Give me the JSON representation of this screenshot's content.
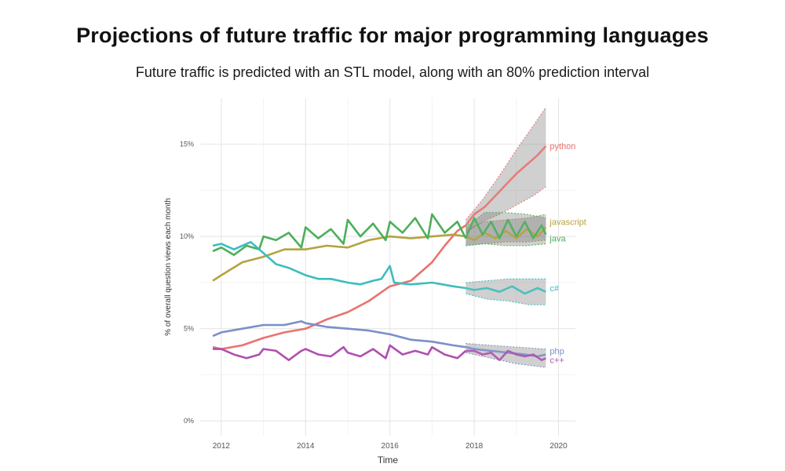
{
  "header": {
    "title": "Projections of future traffic for major programming languages",
    "subtitle": "Future traffic is predicted with an STL model, along with an 80% prediction interval"
  },
  "chart_data": {
    "type": "line",
    "xlabel": "Time",
    "ylabel": "% of overall question views each month",
    "xlim": [
      2011.5,
      2020.4
    ],
    "ylim": [
      -0.8,
      17.5
    ],
    "x_ticks": [
      {
        "value": 2012,
        "label": "2012"
      },
      {
        "value": 2014,
        "label": "2014"
      },
      {
        "value": 2016,
        "label": "2016"
      },
      {
        "value": 2018,
        "label": "2018"
      },
      {
        "value": 2020,
        "label": "2020"
      }
    ],
    "y_ticks": [
      {
        "value": 0,
        "label": "0%"
      },
      {
        "value": 5,
        "label": "5%"
      },
      {
        "value": 10,
        "label": "10%"
      },
      {
        "value": 15,
        "label": "15%"
      }
    ],
    "grid": true,
    "legend": "direct labels at right end of each series",
    "interval_label": "80% prediction interval",
    "series": [
      {
        "name": "python",
        "color": "#e8736f",
        "history": [
          [
            2011.8,
            4.0
          ],
          [
            2012.0,
            3.9
          ],
          [
            2012.5,
            4.1
          ],
          [
            2013.0,
            4.5
          ],
          [
            2013.5,
            4.8
          ],
          [
            2014.0,
            5.0
          ],
          [
            2014.5,
            5.5
          ],
          [
            2015.0,
            5.9
          ],
          [
            2015.5,
            6.5
          ],
          [
            2016.0,
            7.3
          ],
          [
            2016.5,
            7.6
          ],
          [
            2017.0,
            8.6
          ],
          [
            2017.3,
            9.5
          ],
          [
            2017.6,
            10.3
          ],
          [
            2017.8,
            10.6
          ]
        ],
        "forecast": [
          [
            2017.8,
            10.6
          ],
          [
            2018.0,
            11.2
          ],
          [
            2018.25,
            11.6
          ],
          [
            2018.5,
            12.2
          ],
          [
            2018.75,
            12.8
          ],
          [
            2019.0,
            13.4
          ],
          [
            2019.25,
            13.9
          ],
          [
            2019.5,
            14.4
          ],
          [
            2019.7,
            14.9
          ]
        ],
        "lower": [
          [
            2017.8,
            10.2
          ],
          [
            2018.2,
            10.8
          ],
          [
            2018.6,
            11.2
          ],
          [
            2019.0,
            11.7
          ],
          [
            2019.4,
            12.2
          ],
          [
            2019.7,
            12.7
          ]
        ],
        "upper": [
          [
            2017.8,
            10.9
          ],
          [
            2018.2,
            12.0
          ],
          [
            2018.6,
            13.3
          ],
          [
            2019.0,
            14.7
          ],
          [
            2019.4,
            16.0
          ],
          [
            2019.7,
            17.0
          ]
        ]
      },
      {
        "name": "javascript",
        "color": "#b5a33e",
        "history": [
          [
            2011.8,
            7.6
          ],
          [
            2012.0,
            7.9
          ],
          [
            2012.5,
            8.6
          ],
          [
            2013.0,
            8.9
          ],
          [
            2013.5,
            9.3
          ],
          [
            2014.0,
            9.3
          ],
          [
            2014.5,
            9.5
          ],
          [
            2015.0,
            9.4
          ],
          [
            2015.5,
            9.8
          ],
          [
            2016.0,
            10.0
          ],
          [
            2016.5,
            9.9
          ],
          [
            2017.0,
            10.0
          ],
          [
            2017.5,
            10.1
          ],
          [
            2017.8,
            10.0
          ]
        ],
        "forecast": [
          [
            2017.8,
            10.0
          ],
          [
            2018.0,
            9.8
          ],
          [
            2018.25,
            10.2
          ],
          [
            2018.5,
            9.9
          ],
          [
            2018.75,
            10.3
          ],
          [
            2019.0,
            9.9
          ],
          [
            2019.25,
            10.4
          ],
          [
            2019.5,
            10.0
          ],
          [
            2019.7,
            10.5
          ]
        ],
        "lower": [
          [
            2017.8,
            9.5
          ],
          [
            2018.25,
            9.6
          ],
          [
            2018.75,
            9.7
          ],
          [
            2019.25,
            9.7
          ],
          [
            2019.7,
            9.8
          ]
        ],
        "upper": [
          [
            2017.8,
            10.4
          ],
          [
            2018.25,
            10.8
          ],
          [
            2018.75,
            10.9
          ],
          [
            2019.25,
            11.0
          ],
          [
            2019.7,
            11.2
          ]
        ]
      },
      {
        "name": "java",
        "color": "#4caf5a",
        "history": [
          [
            2011.8,
            9.2
          ],
          [
            2012.0,
            9.4
          ],
          [
            2012.3,
            9.0
          ],
          [
            2012.6,
            9.5
          ],
          [
            2012.9,
            9.3
          ],
          [
            2013.0,
            10.0
          ],
          [
            2013.3,
            9.8
          ],
          [
            2013.6,
            10.2
          ],
          [
            2013.9,
            9.4
          ],
          [
            2014.0,
            10.5
          ],
          [
            2014.3,
            9.9
          ],
          [
            2014.6,
            10.4
          ],
          [
            2014.9,
            9.6
          ],
          [
            2015.0,
            10.9
          ],
          [
            2015.3,
            10.0
          ],
          [
            2015.6,
            10.7
          ],
          [
            2015.9,
            9.8
          ],
          [
            2016.0,
            10.8
          ],
          [
            2016.3,
            10.2
          ],
          [
            2016.6,
            11.0
          ],
          [
            2016.9,
            9.9
          ],
          [
            2017.0,
            11.2
          ],
          [
            2017.3,
            10.2
          ],
          [
            2017.6,
            10.8
          ],
          [
            2017.8,
            9.9
          ]
        ],
        "forecast": [
          [
            2017.8,
            9.9
          ],
          [
            2018.0,
            11.0
          ],
          [
            2018.2,
            10.1
          ],
          [
            2018.4,
            10.8
          ],
          [
            2018.6,
            9.9
          ],
          [
            2018.8,
            10.9
          ],
          [
            2019.0,
            10.0
          ],
          [
            2019.2,
            10.8
          ],
          [
            2019.4,
            9.9
          ],
          [
            2019.6,
            10.6
          ],
          [
            2019.7,
            10.1
          ]
        ],
        "lower": [
          [
            2017.8,
            9.5
          ],
          [
            2018.25,
            9.6
          ],
          [
            2018.75,
            9.5
          ],
          [
            2019.25,
            9.5
          ],
          [
            2019.7,
            9.6
          ]
        ],
        "upper": [
          [
            2017.8,
            10.5
          ],
          [
            2018.25,
            11.3
          ],
          [
            2018.75,
            11.3
          ],
          [
            2019.25,
            11.2
          ],
          [
            2019.7,
            11.0
          ]
        ]
      },
      {
        "name": "c#",
        "color": "#3dbdbd",
        "history": [
          [
            2011.8,
            9.5
          ],
          [
            2012.0,
            9.6
          ],
          [
            2012.3,
            9.3
          ],
          [
            2012.5,
            9.5
          ],
          [
            2012.7,
            9.7
          ],
          [
            2013.0,
            9.1
          ],
          [
            2013.3,
            8.5
          ],
          [
            2013.6,
            8.3
          ],
          [
            2014.0,
            7.9
          ],
          [
            2014.3,
            7.7
          ],
          [
            2014.6,
            7.7
          ],
          [
            2015.0,
            7.5
          ],
          [
            2015.3,
            7.4
          ],
          [
            2015.6,
            7.6
          ],
          [
            2015.8,
            7.7
          ],
          [
            2016.0,
            8.4
          ],
          [
            2016.1,
            7.5
          ],
          [
            2016.5,
            7.4
          ],
          [
            2017.0,
            7.5
          ],
          [
            2017.5,
            7.3
          ],
          [
            2017.8,
            7.2
          ]
        ],
        "forecast": [
          [
            2017.8,
            7.2
          ],
          [
            2018.0,
            7.1
          ],
          [
            2018.3,
            7.2
          ],
          [
            2018.6,
            7.0
          ],
          [
            2018.9,
            7.3
          ],
          [
            2019.2,
            6.9
          ],
          [
            2019.5,
            7.2
          ],
          [
            2019.7,
            7.0
          ]
        ],
        "lower": [
          [
            2017.8,
            6.9
          ],
          [
            2018.3,
            6.6
          ],
          [
            2018.8,
            6.5
          ],
          [
            2019.3,
            6.3
          ],
          [
            2019.7,
            6.3
          ]
        ],
        "upper": [
          [
            2017.8,
            7.5
          ],
          [
            2018.3,
            7.6
          ],
          [
            2018.8,
            7.7
          ],
          [
            2019.3,
            7.7
          ],
          [
            2019.7,
            7.7
          ]
        ]
      },
      {
        "name": "php",
        "color": "#7b8fc8",
        "history": [
          [
            2011.8,
            4.6
          ],
          [
            2012.0,
            4.8
          ],
          [
            2012.5,
            5.0
          ],
          [
            2013.0,
            5.2
          ],
          [
            2013.5,
            5.2
          ],
          [
            2013.9,
            5.4
          ],
          [
            2014.0,
            5.3
          ],
          [
            2014.5,
            5.1
          ],
          [
            2015.0,
            5.0
          ],
          [
            2015.5,
            4.9
          ],
          [
            2016.0,
            4.7
          ],
          [
            2016.5,
            4.4
          ],
          [
            2017.0,
            4.3
          ],
          [
            2017.5,
            4.1
          ],
          [
            2017.8,
            4.0
          ]
        ],
        "forecast": [
          [
            2017.8,
            4.0
          ],
          [
            2018.0,
            3.9
          ],
          [
            2018.4,
            3.8
          ],
          [
            2018.8,
            3.7
          ],
          [
            2019.2,
            3.6
          ],
          [
            2019.5,
            3.5
          ],
          [
            2019.7,
            3.6
          ]
        ],
        "lower": [
          [
            2017.8,
            3.7
          ],
          [
            2018.4,
            3.4
          ],
          [
            2019.0,
            3.1
          ],
          [
            2019.7,
            2.9
          ]
        ],
        "upper": [
          [
            2017.8,
            4.2
          ],
          [
            2018.4,
            4.1
          ],
          [
            2019.0,
            4.0
          ],
          [
            2019.7,
            3.9
          ]
        ]
      },
      {
        "name": "c++",
        "color": "#b04fb0",
        "history": [
          [
            2011.8,
            3.9
          ],
          [
            2012.0,
            3.9
          ],
          [
            2012.3,
            3.6
          ],
          [
            2012.6,
            3.4
          ],
          [
            2012.9,
            3.6
          ],
          [
            2013.0,
            3.9
          ],
          [
            2013.3,
            3.8
          ],
          [
            2013.6,
            3.3
          ],
          [
            2013.9,
            3.8
          ],
          [
            2014.0,
            3.9
          ],
          [
            2014.3,
            3.6
          ],
          [
            2014.6,
            3.5
          ],
          [
            2014.9,
            4.0
          ],
          [
            2015.0,
            3.7
          ],
          [
            2015.3,
            3.5
          ],
          [
            2015.6,
            3.9
          ],
          [
            2015.9,
            3.4
          ],
          [
            2016.0,
            4.1
          ],
          [
            2016.3,
            3.6
          ],
          [
            2016.6,
            3.8
          ],
          [
            2016.9,
            3.6
          ],
          [
            2017.0,
            4.0
          ],
          [
            2017.3,
            3.6
          ],
          [
            2017.6,
            3.4
          ],
          [
            2017.8,
            3.8
          ]
        ],
        "forecast": [
          [
            2017.8,
            3.8
          ],
          [
            2018.0,
            3.8
          ],
          [
            2018.2,
            3.6
          ],
          [
            2018.4,
            3.7
          ],
          [
            2018.6,
            3.3
          ],
          [
            2018.8,
            3.8
          ],
          [
            2019.0,
            3.6
          ],
          [
            2019.2,
            3.5
          ],
          [
            2019.4,
            3.6
          ],
          [
            2019.6,
            3.3
          ],
          [
            2019.7,
            3.4
          ]
        ],
        "lower": [],
        "upper": []
      }
    ]
  }
}
